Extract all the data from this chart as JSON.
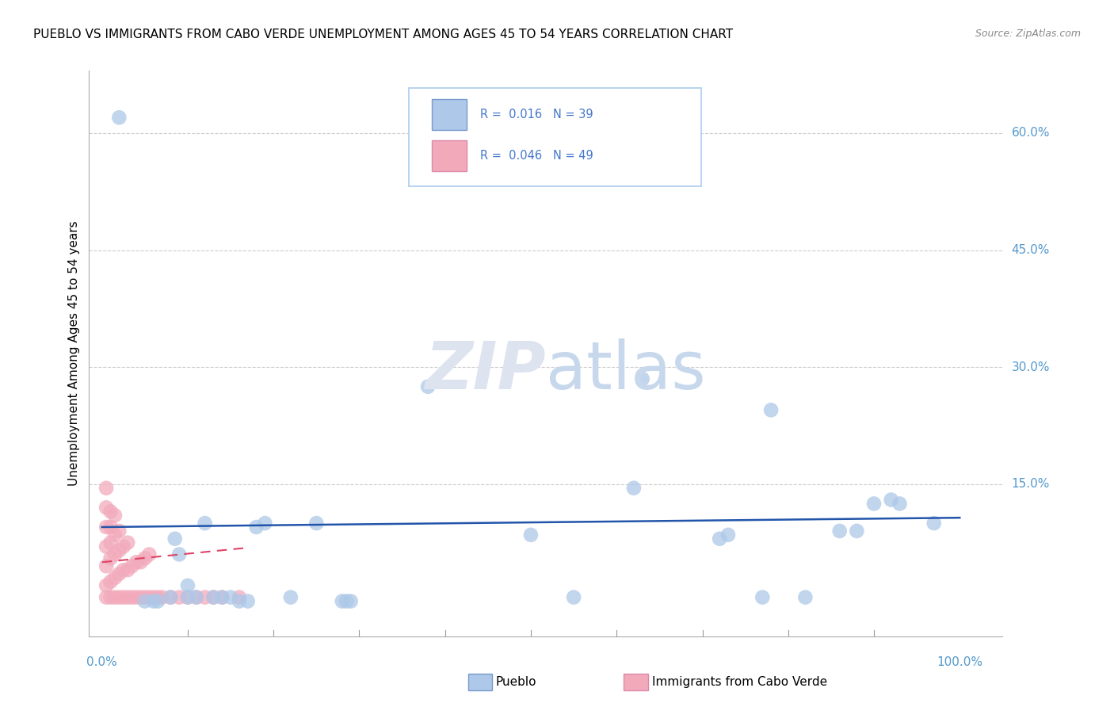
{
  "title": "PUEBLO VS IMMIGRANTS FROM CABO VERDE UNEMPLOYMENT AMONG AGES 45 TO 54 YEARS CORRELATION CHART",
  "source": "Source: ZipAtlas.com",
  "ylabel": "Unemployment Among Ages 45 to 54 years",
  "y_tick_labels": [
    "15.0%",
    "30.0%",
    "45.0%",
    "60.0%"
  ],
  "y_tick_values": [
    0.15,
    0.3,
    0.45,
    0.6
  ],
  "pueblo_color": "#adc8e8",
  "cabo_color": "#f2aabb",
  "pueblo_line_color": "#2255aa",
  "cabo_line_color": "#dd4466",
  "xlim": [
    -0.015,
    1.05
  ],
  "ylim": [
    -0.045,
    0.68
  ],
  "pueblo_scatter": [
    [
      0.02,
      0.62
    ],
    [
      0.05,
      0.0
    ],
    [
      0.06,
      0.0
    ],
    [
      0.065,
      0.0
    ],
    [
      0.08,
      0.005
    ],
    [
      0.085,
      0.08
    ],
    [
      0.09,
      0.06
    ],
    [
      0.1,
      0.02
    ],
    [
      0.1,
      0.005
    ],
    [
      0.11,
      0.005
    ],
    [
      0.12,
      0.1
    ],
    [
      0.13,
      0.005
    ],
    [
      0.14,
      0.005
    ],
    [
      0.15,
      0.005
    ],
    [
      0.16,
      0.0
    ],
    [
      0.17,
      0.0
    ],
    [
      0.18,
      0.095
    ],
    [
      0.19,
      0.1
    ],
    [
      0.22,
      0.005
    ],
    [
      0.25,
      0.1
    ],
    [
      0.28,
      0.0
    ],
    [
      0.285,
      0.0
    ],
    [
      0.29,
      0.0
    ],
    [
      0.38,
      0.275
    ],
    [
      0.5,
      0.085
    ],
    [
      0.55,
      0.005
    ],
    [
      0.62,
      0.145
    ],
    [
      0.63,
      0.285
    ],
    [
      0.72,
      0.08
    ],
    [
      0.73,
      0.085
    ],
    [
      0.77,
      0.005
    ],
    [
      0.78,
      0.245
    ],
    [
      0.82,
      0.005
    ],
    [
      0.86,
      0.09
    ],
    [
      0.88,
      0.09
    ],
    [
      0.9,
      0.125
    ],
    [
      0.92,
      0.13
    ],
    [
      0.93,
      0.125
    ],
    [
      0.97,
      0.1
    ]
  ],
  "cabo_scatter": [
    [
      0.005,
      0.005
    ],
    [
      0.005,
      0.02
    ],
    [
      0.005,
      0.045
    ],
    [
      0.005,
      0.07
    ],
    [
      0.005,
      0.095
    ],
    [
      0.005,
      0.12
    ],
    [
      0.005,
      0.145
    ],
    [
      0.01,
      0.005
    ],
    [
      0.01,
      0.025
    ],
    [
      0.01,
      0.055
    ],
    [
      0.01,
      0.075
    ],
    [
      0.01,
      0.095
    ],
    [
      0.01,
      0.115
    ],
    [
      0.015,
      0.005
    ],
    [
      0.015,
      0.03
    ],
    [
      0.015,
      0.06
    ],
    [
      0.015,
      0.085
    ],
    [
      0.015,
      0.11
    ],
    [
      0.02,
      0.005
    ],
    [
      0.02,
      0.035
    ],
    [
      0.02,
      0.065
    ],
    [
      0.02,
      0.09
    ],
    [
      0.025,
      0.005
    ],
    [
      0.025,
      0.04
    ],
    [
      0.025,
      0.07
    ],
    [
      0.03,
      0.005
    ],
    [
      0.03,
      0.04
    ],
    [
      0.03,
      0.075
    ],
    [
      0.035,
      0.005
    ],
    [
      0.035,
      0.045
    ],
    [
      0.04,
      0.005
    ],
    [
      0.04,
      0.05
    ],
    [
      0.045,
      0.005
    ],
    [
      0.045,
      0.05
    ],
    [
      0.05,
      0.005
    ],
    [
      0.05,
      0.055
    ],
    [
      0.055,
      0.005
    ],
    [
      0.055,
      0.06
    ],
    [
      0.06,
      0.005
    ],
    [
      0.065,
      0.005
    ],
    [
      0.07,
      0.005
    ],
    [
      0.08,
      0.005
    ],
    [
      0.09,
      0.005
    ],
    [
      0.1,
      0.005
    ],
    [
      0.11,
      0.005
    ],
    [
      0.12,
      0.005
    ],
    [
      0.13,
      0.005
    ],
    [
      0.14,
      0.005
    ],
    [
      0.16,
      0.005
    ]
  ],
  "pueblo_line_x": [
    0.0,
    1.0
  ],
  "pueblo_line_y": [
    0.095,
    0.107
  ],
  "cabo_line_x": [
    0.0,
    0.165
  ],
  "cabo_line_y": [
    0.05,
    0.068
  ]
}
